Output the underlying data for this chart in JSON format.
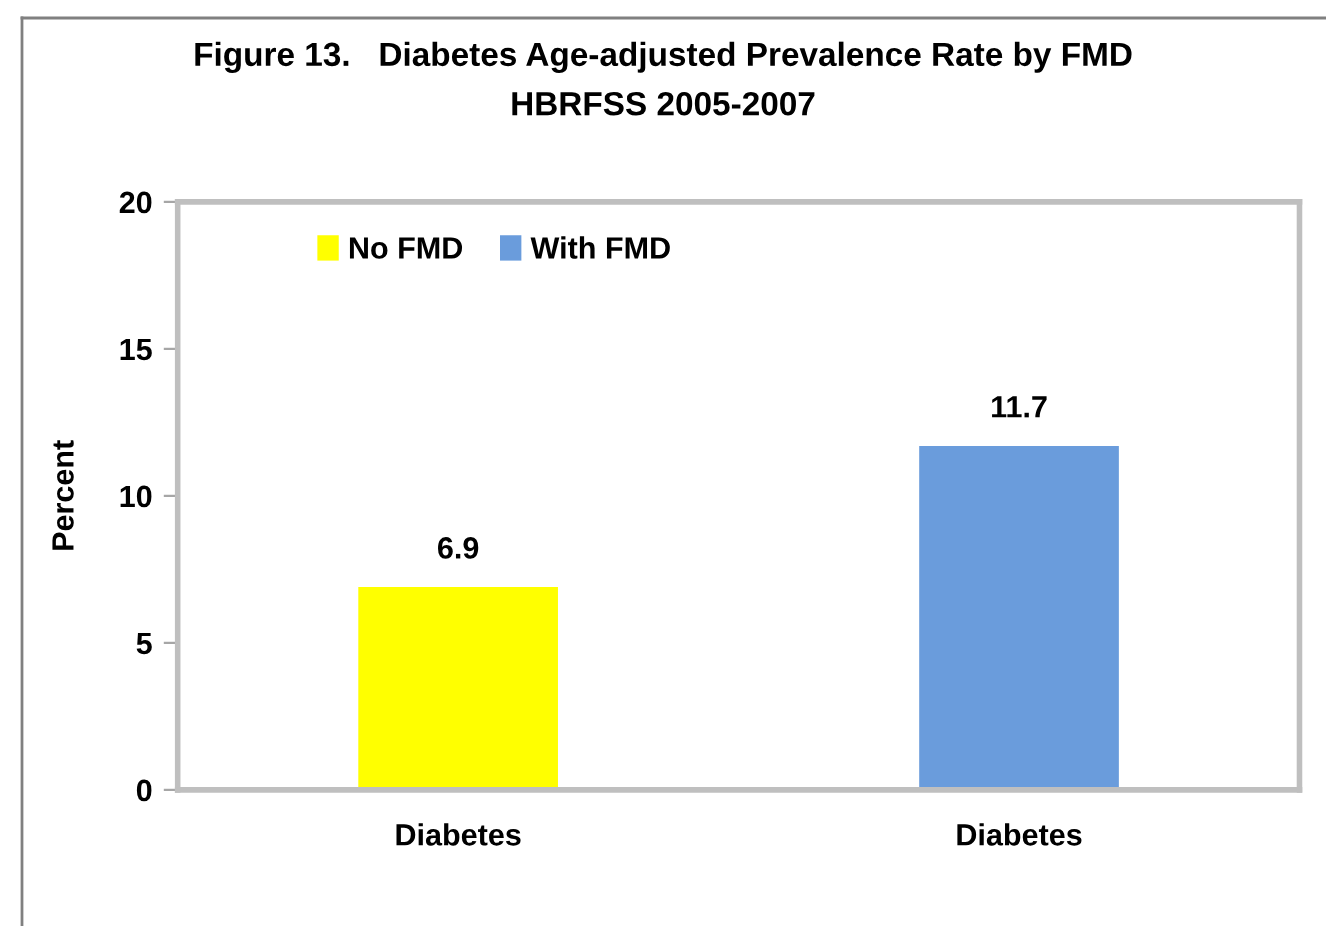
{
  "chart_data": {
    "type": "bar",
    "title": "Figure 13.   Diabetes Age-adjusted Prevalence Rate by FMD\nHBRFSS 2005-2007",
    "ylabel": "Percent",
    "categories": [
      "Diabetes",
      "Diabetes"
    ],
    "series": [
      {
        "name": "No FMD",
        "color": "#ffff00",
        "values": [
          6.9,
          null
        ]
      },
      {
        "name": "With FMD",
        "color": "#6a9cdc",
        "values": [
          null,
          11.7
        ]
      }
    ],
    "ylim": [
      0,
      20
    ],
    "yticks": [
      0,
      5,
      10,
      15,
      20
    ],
    "data_labels": true,
    "legend": "top left",
    "grid": false
  }
}
